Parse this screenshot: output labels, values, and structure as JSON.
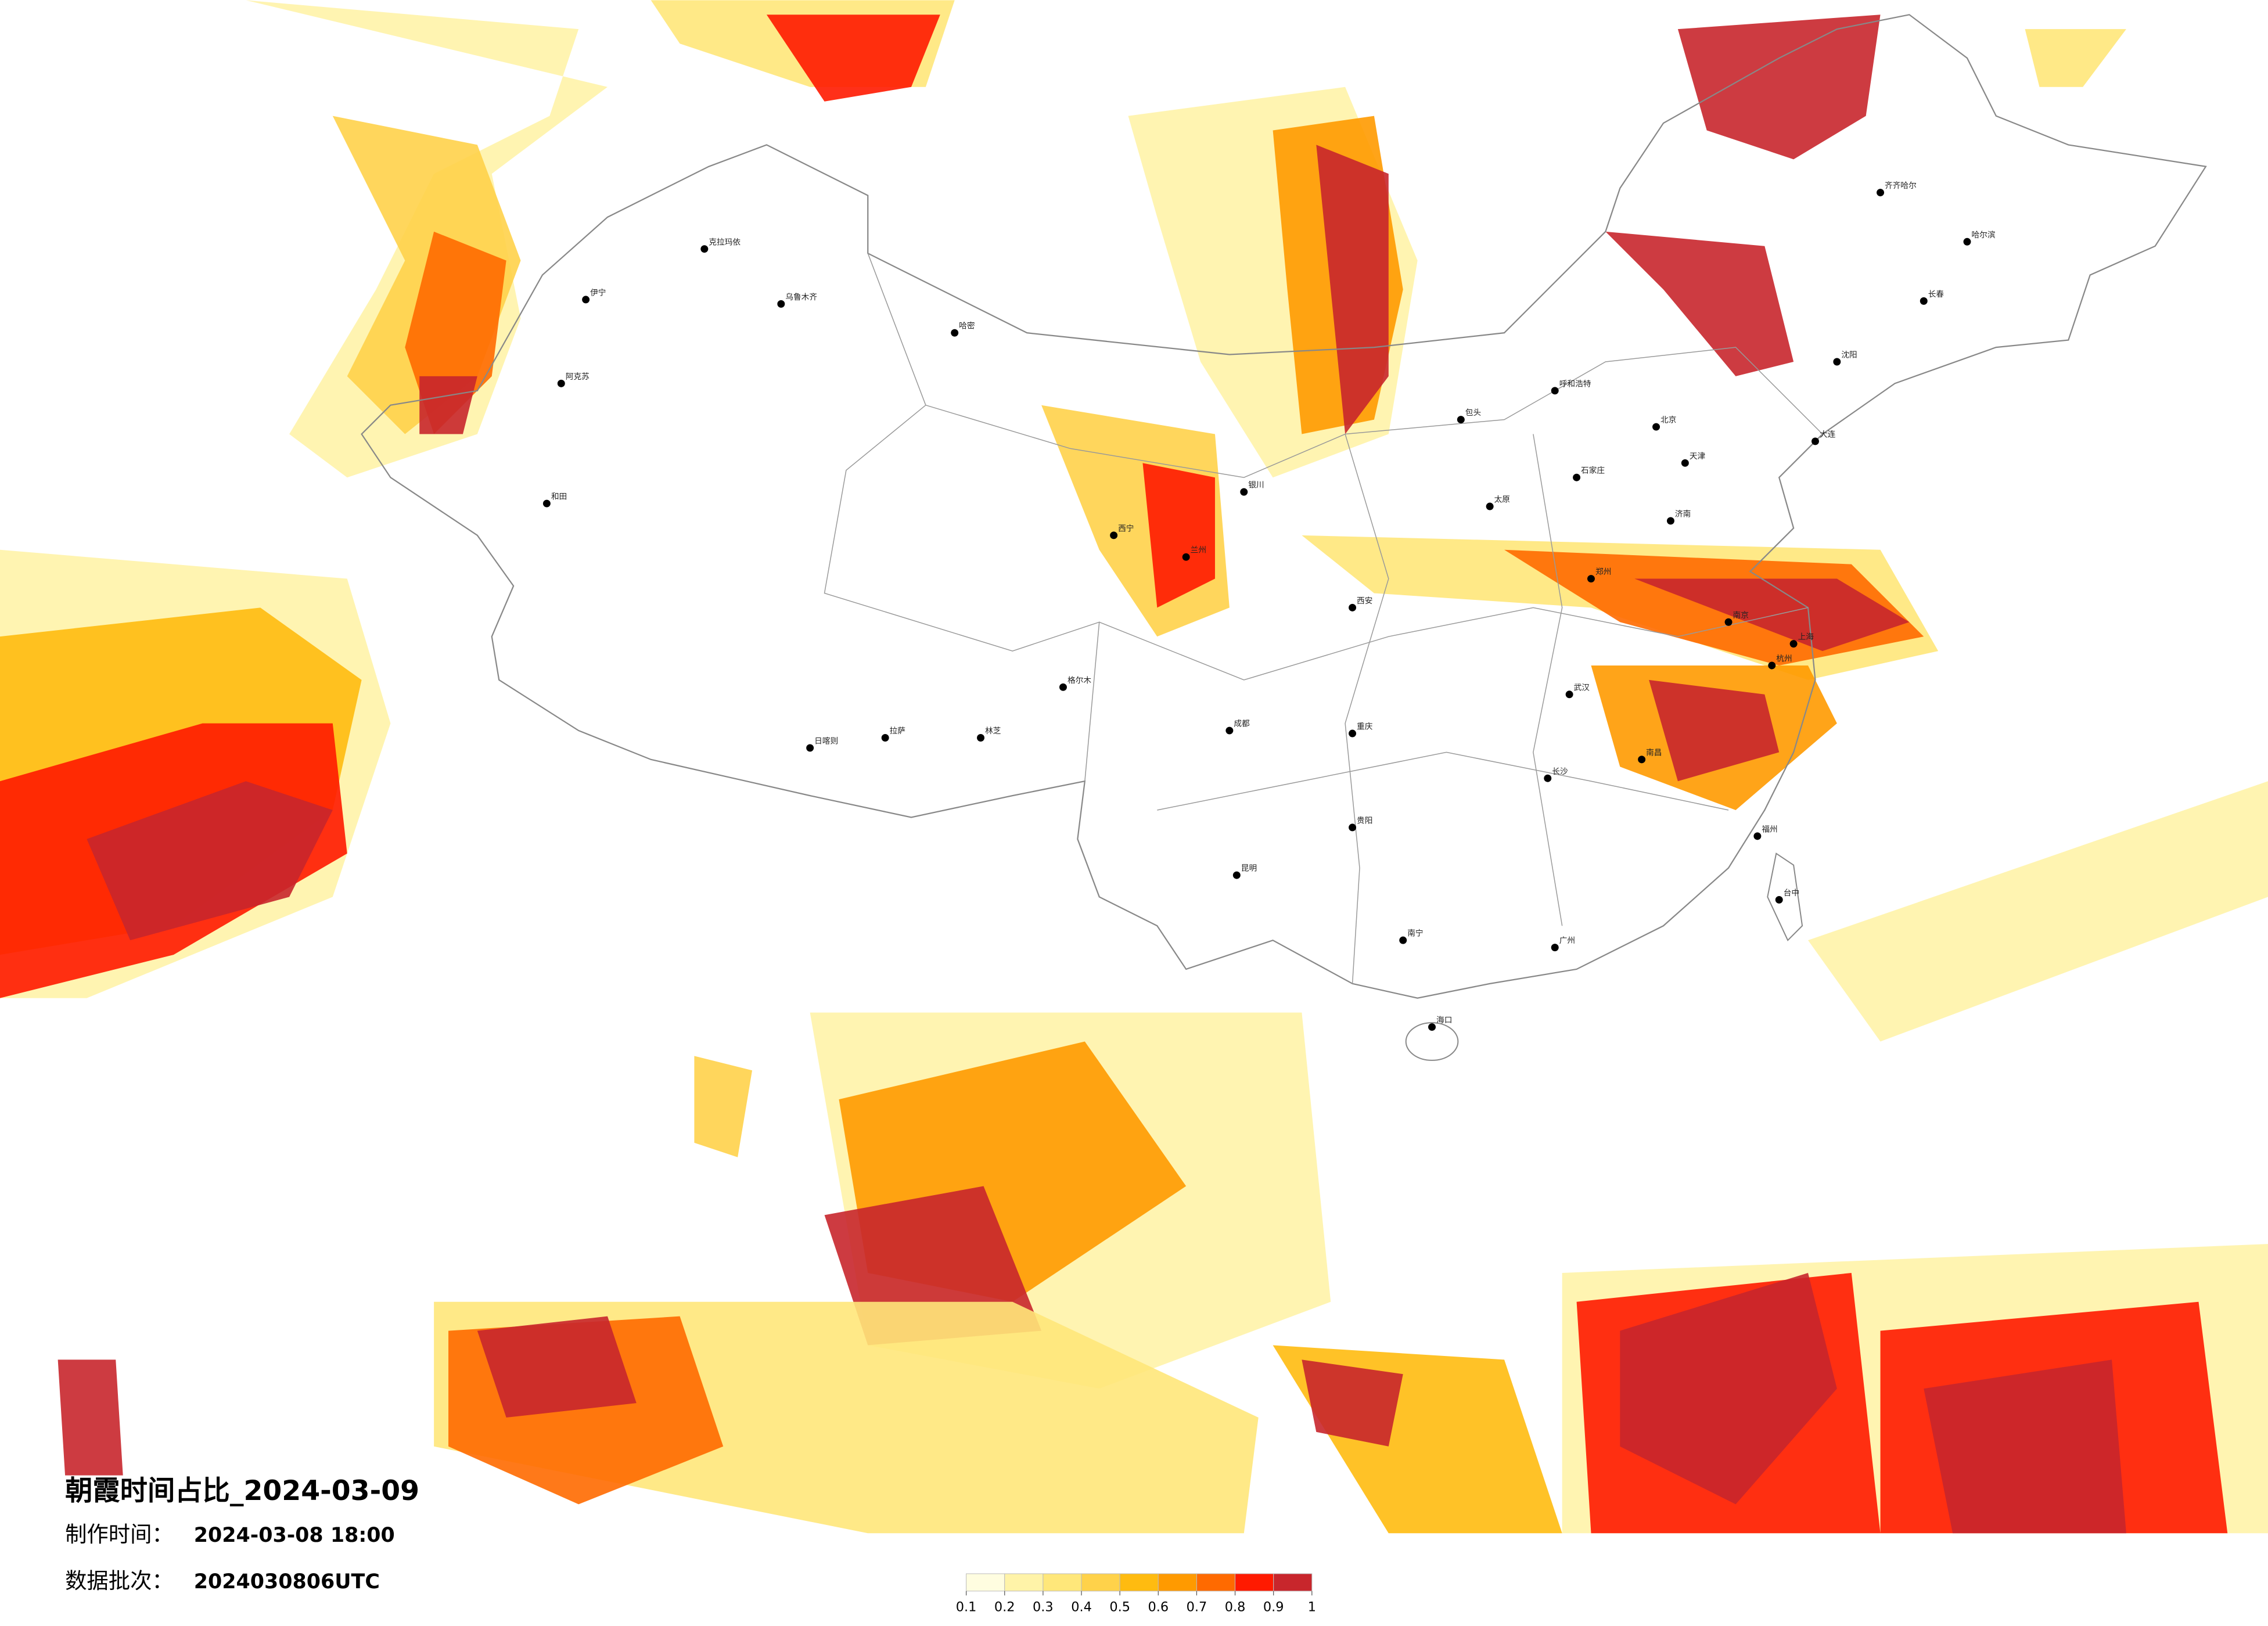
{
  "title": "朝霞时间占比_2024-03-09",
  "made_label": "制作时间：",
  "made_time": "2024-03-08 18:00",
  "batch_label": "数据批次：",
  "batch": "2024030806UTC",
  "legend": {
    "ticks": [
      0.1,
      0.2,
      0.3,
      0.4,
      0.5,
      0.6,
      0.7,
      0.8,
      0.9,
      1
    ],
    "colors": [
      "#fffde0",
      "#fff3a8",
      "#ffe77a",
      "#ffd24a",
      "#ffbb10",
      "#ff9a00",
      "#ff6a00",
      "#ff1a00",
      "#c8262c"
    ]
  },
  "cities": [
    "伊宁",
    "阿克苏",
    "和田",
    "克拉玛依",
    "乌鲁木齐",
    "哈密",
    "日喀则",
    "拉萨",
    "林芝",
    "格尔木",
    "西宁",
    "兰州",
    "银川",
    "包头",
    "呼和浩特",
    "太原",
    "石家庄",
    "北京",
    "天津",
    "济南",
    "郑州",
    "西安",
    "成都",
    "重庆",
    "武汉",
    "长沙",
    "南昌",
    "南京",
    "上海",
    "杭州",
    "福州",
    "台中",
    "广州",
    "南宁",
    "海口",
    "贵阳",
    "昆明",
    "沈阳",
    "长春",
    "哈尔滨",
    "齐齐哈尔",
    "大连"
  ]
}
